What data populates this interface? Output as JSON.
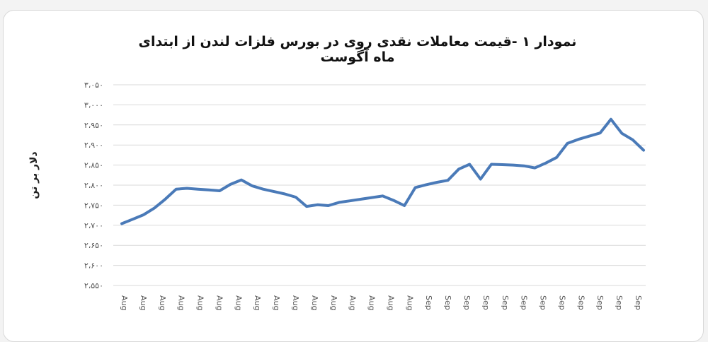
{
  "chart_data": {
    "type": "line",
    "title": "نمودار ۱ -قیمت معاملات نقدی روی در بورس فلزات لندن از ابتدای ماه آگوست",
    "xlabel": "",
    "ylabel": "دلار بر تن",
    "ylim": [
      2550,
      3050
    ],
    "yticks": [
      2550,
      2600,
      2650,
      2700,
      2750,
      2800,
      2850,
      2900,
      2950,
      3000,
      3050
    ],
    "ytick_labels": [
      "۲،۵۵۰",
      "۲،۶۰۰",
      "۲،۶۵۰",
      "۲،۷۰۰",
      "۲،۷۵۰",
      "۲،۸۰۰",
      "۲،۸۵۰",
      "۲،۹۰۰",
      "۲،۹۵۰",
      "۳،۰۰۰",
      "۳،۰۵۰"
    ],
    "xtick_labels": [
      "Aug",
      "Aug",
      "Aug",
      "Aug",
      "Aug",
      "Aug",
      "Aug",
      "Aug",
      "Aug",
      "Aug",
      "Aug",
      "Aug",
      "Aug",
      "Aug",
      "Aug",
      "Aug",
      "Sep",
      "Sep",
      "Sep",
      "Sep",
      "Sep",
      "Sep",
      "Sep",
      "Sep",
      "Sep",
      "Sep",
      "Sep",
      "Sep"
    ],
    "grid": true,
    "line_color": "#4a7ab8",
    "series": [
      {
        "values": [
          2704,
          2715,
          2726,
          2743,
          2765,
          2790,
          2792,
          2790,
          2788,
          2786,
          2802,
          2813,
          2798,
          2790,
          2784,
          2778,
          2770,
          2747,
          2751,
          2749,
          2757,
          2761,
          2765,
          2769,
          2773,
          2762,
          2749,
          2794,
          2801,
          2807,
          2812,
          2840,
          2852,
          2815,
          2852,
          2851,
          2850,
          2848,
          2843,
          2855,
          2869,
          2904,
          2914,
          2922,
          2930,
          2964,
          2929,
          2913,
          2887
        ]
      }
    ]
  }
}
